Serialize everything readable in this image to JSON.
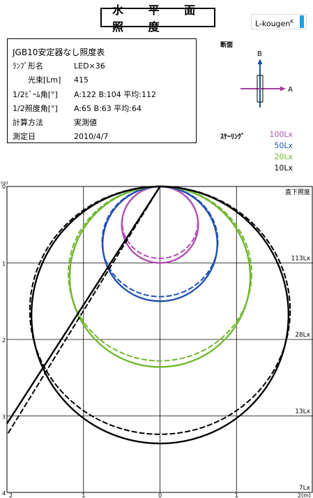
{
  "header": {
    "title": "水 平 面 照 度",
    "logo_text": "L-kougen",
    "logo_mark": "K"
  },
  "info": {
    "table_title": "JGB10安定器なし照度表",
    "rows": [
      {
        "label": "ﾗﾝﾌﾟ形名",
        "value": "LED×36"
      },
      {
        "label": "光束[Lm]",
        "value": "415"
      },
      {
        "label": "1/2ﾋﾞｰﾑ角[°]",
        "value": "A:122 B:104 平均:112"
      },
      {
        "label": "1/2照度角[°]",
        "value": "A:65  B:63  平均:64"
      },
      {
        "label": "計算方法",
        "value": "実測値"
      },
      {
        "label": "測定日",
        "value": "2010/4/7"
      }
    ]
  },
  "section": {
    "label": "断面",
    "axis_a": "A",
    "axis_b": "B",
    "colors": {
      "a_axis": "#a040a0",
      "b_axis": "#1a4fa0"
    }
  },
  "scaling": {
    "label": "ｽｹｰﾘﾝｸﾞ",
    "items": [
      {
        "label": "100Lx",
        "color": "#b050b0"
      },
      {
        "label": "50Lx",
        "color": "#2050b0"
      },
      {
        "label": "20Lx",
        "color": "#70b830"
      },
      {
        "label": "10Lx",
        "color": "#000000"
      }
    ]
  },
  "chart_data": {
    "type": "line",
    "unit_label": "(m)",
    "corner_label": "直下照度",
    "x_range": [
      -2,
      2
    ],
    "y_range": [
      0,
      4
    ],
    "x_ticks": [
      "2",
      "1",
      "0",
      "1",
      "2(m)"
    ],
    "y_ticks": [
      "0",
      "1",
      "2",
      "3",
      "4"
    ],
    "direct_illuminance": [
      {
        "height": 1,
        "label": "113Lx"
      },
      {
        "height": 2,
        "label": "28Lx"
      },
      {
        "height": 3,
        "label": "13Lx"
      },
      {
        "height": 4,
        "label": "7Lx"
      }
    ],
    "series": [
      {
        "name": "100Lx",
        "color": "#b050b0",
        "radius_a": 0.5,
        "radius_b": 0.47
      },
      {
        "name": "50Lx",
        "color": "#2050b0",
        "radius_a": 0.75,
        "radius_b": 0.72
      },
      {
        "name": "20Lx",
        "color": "#70b830",
        "radius_a": 1.18,
        "radius_b": 1.14
      },
      {
        "name": "10Lx",
        "color": "#000000",
        "radius_a": 1.68,
        "radius_b": 1.62
      }
    ],
    "beam_line_solid": [
      [
        0,
        0
      ],
      [
        -2,
        3.1
      ]
    ],
    "beam_line_dashed": [
      [
        0,
        0
      ],
      [
        -2,
        3.25
      ]
    ]
  }
}
